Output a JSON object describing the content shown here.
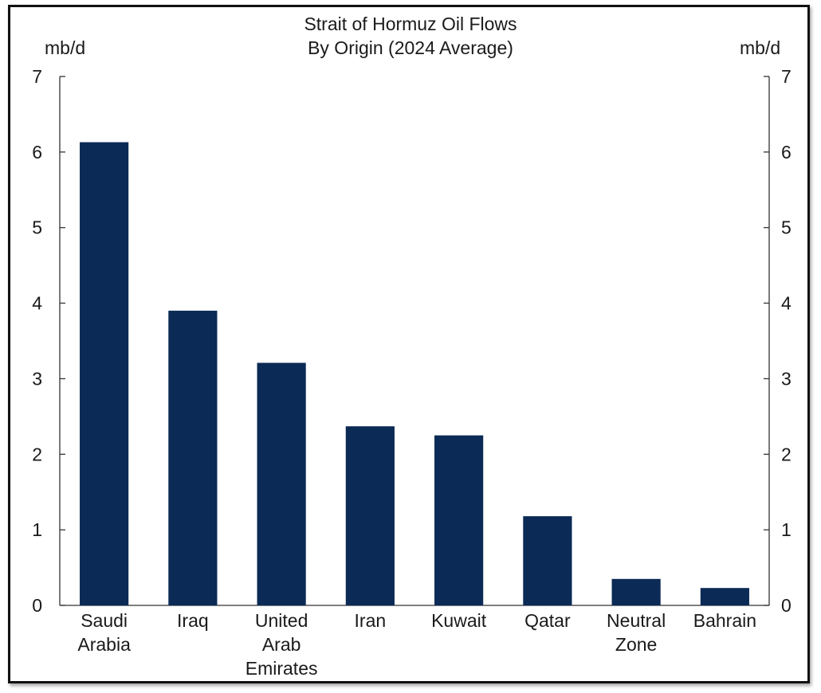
{
  "chart_data": {
    "type": "bar",
    "title": "Strait of Hormuz Oil Flows",
    "subtitle": "By Origin (2024 Average)",
    "ylabel_left": "mb/d",
    "ylabel_right": "mb/d",
    "categories": [
      "Saudi Arabia",
      "Iraq",
      "United Arab Emirates",
      "Iran",
      "Kuwait",
      "Qatar",
      "Neutral Zone",
      "Bahrain"
    ],
    "category_lines": [
      [
        "Saudi",
        "Arabia"
      ],
      [
        "Iraq"
      ],
      [
        "United",
        "Arab",
        "Emirates"
      ],
      [
        "Iran"
      ],
      [
        "Kuwait"
      ],
      [
        "Qatar"
      ],
      [
        "Neutral",
        "Zone"
      ],
      [
        "Bahrain"
      ]
    ],
    "values": [
      6.13,
      3.9,
      3.21,
      2.37,
      2.25,
      1.18,
      0.35,
      0.23
    ],
    "ylim": [
      0,
      7
    ],
    "yticks": [
      "0",
      "1",
      "2",
      "3",
      "4",
      "5",
      "6",
      "7"
    ],
    "grid": false,
    "legend": "none",
    "bar_color": "#0b2a55"
  }
}
